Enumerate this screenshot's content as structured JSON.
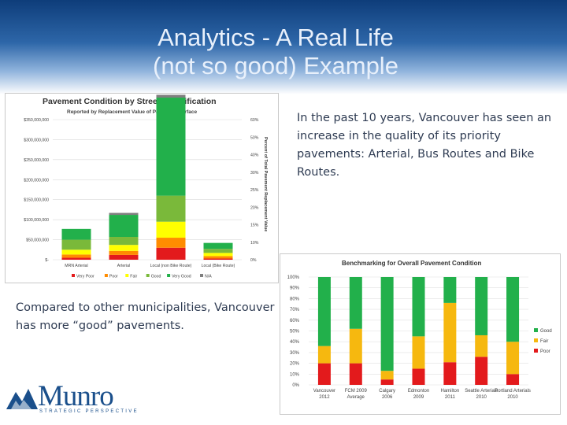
{
  "slide": {
    "title_line1": "Analytics - A Real Life",
    "title_line2": "(not so good) Example",
    "paragraph1": "In the past 10 years, Vancouver has seen an increase in the quality of its priority pavements: Arterial, Bus Routes and Bike Routes.",
    "paragraph2": "Compared to other municipalities, Vancouver has more “good” pavements.",
    "logo_word": "Munro",
    "logo_tagline": "STRATEGIC PERSPECTIVE",
    "accent_color": "#1a4f8b"
  },
  "chart_data": [
    {
      "type": "bar",
      "stacked": true,
      "title": "Pavement Condition by Street Classification",
      "subtitle": "Reported by Replacement Value of Pavement Surface",
      "ylabel_right": "Percent of Total Pavement Replacement Value",
      "categories": [
        "MRN Arterial",
        "Arterial",
        "Local (non Bike Route)",
        "Local (Bike Route)"
      ],
      "y_ticks": [
        "$-",
        "$50,000,000",
        "$100,000,000",
        "$150,000,000",
        "$200,000,000",
        "$250,000,000",
        "$300,000,000",
        "$350,000,000"
      ],
      "y2_ticks": [
        "0%",
        "10%",
        "15%",
        "20%",
        "25%",
        "30%",
        "40%",
        "50%",
        "60%"
      ],
      "ylim": [
        0,
        350000000
      ],
      "series": [
        {
          "name": "Very Poor",
          "color": "#e31a1c",
          "values": [
            5000000,
            12000000,
            30000000,
            3000000
          ]
        },
        {
          "name": "Poor",
          "color": "#ff8c00",
          "values": [
            8000000,
            10000000,
            25000000,
            6000000
          ]
        },
        {
          "name": "Fair",
          "color": "#ffff00",
          "values": [
            12000000,
            15000000,
            40000000,
            8000000
          ]
        },
        {
          "name": "Good",
          "color": "#7ab93a",
          "values": [
            25000000,
            20000000,
            65000000,
            10000000
          ]
        },
        {
          "name": "Very Good",
          "color": "#22b04b",
          "values": [
            27000000,
            55000000,
            245000000,
            15000000
          ]
        },
        {
          "name": "N/A",
          "color": "#7f7f7f",
          "values": [
            0,
            5000000,
            7000000,
            0
          ]
        }
      ],
      "legend_position": "bottom"
    },
    {
      "type": "bar",
      "stacked": true,
      "title": "Benchmarking for Overall Pavement Condition",
      "categories": [
        "Vancouver 2012",
        "FCM 2009 Average",
        "Calgary 2006",
        "Edmonton 2009",
        "Hamilton 2011",
        "Seattle Arterials 2010",
        "Portland Arterials 2010"
      ],
      "y_ticks": [
        "0%",
        "10%",
        "20%",
        "30%",
        "40%",
        "50%",
        "60%",
        "70%",
        "80%",
        "90%",
        "100%"
      ],
      "ylim": [
        0,
        100
      ],
      "series": [
        {
          "name": "Poor",
          "color": "#e31a1c",
          "values": [
            20,
            20,
            5,
            15,
            21,
            26,
            10
          ]
        },
        {
          "name": "Fair",
          "color": "#f6b80f",
          "values": [
            16,
            32,
            8,
            30,
            55,
            20,
            30
          ]
        },
        {
          "name": "Good",
          "color": "#22b04b",
          "values": [
            64,
            48,
            87,
            55,
            24,
            54,
            60
          ]
        }
      ],
      "legend_position": "right"
    }
  ]
}
